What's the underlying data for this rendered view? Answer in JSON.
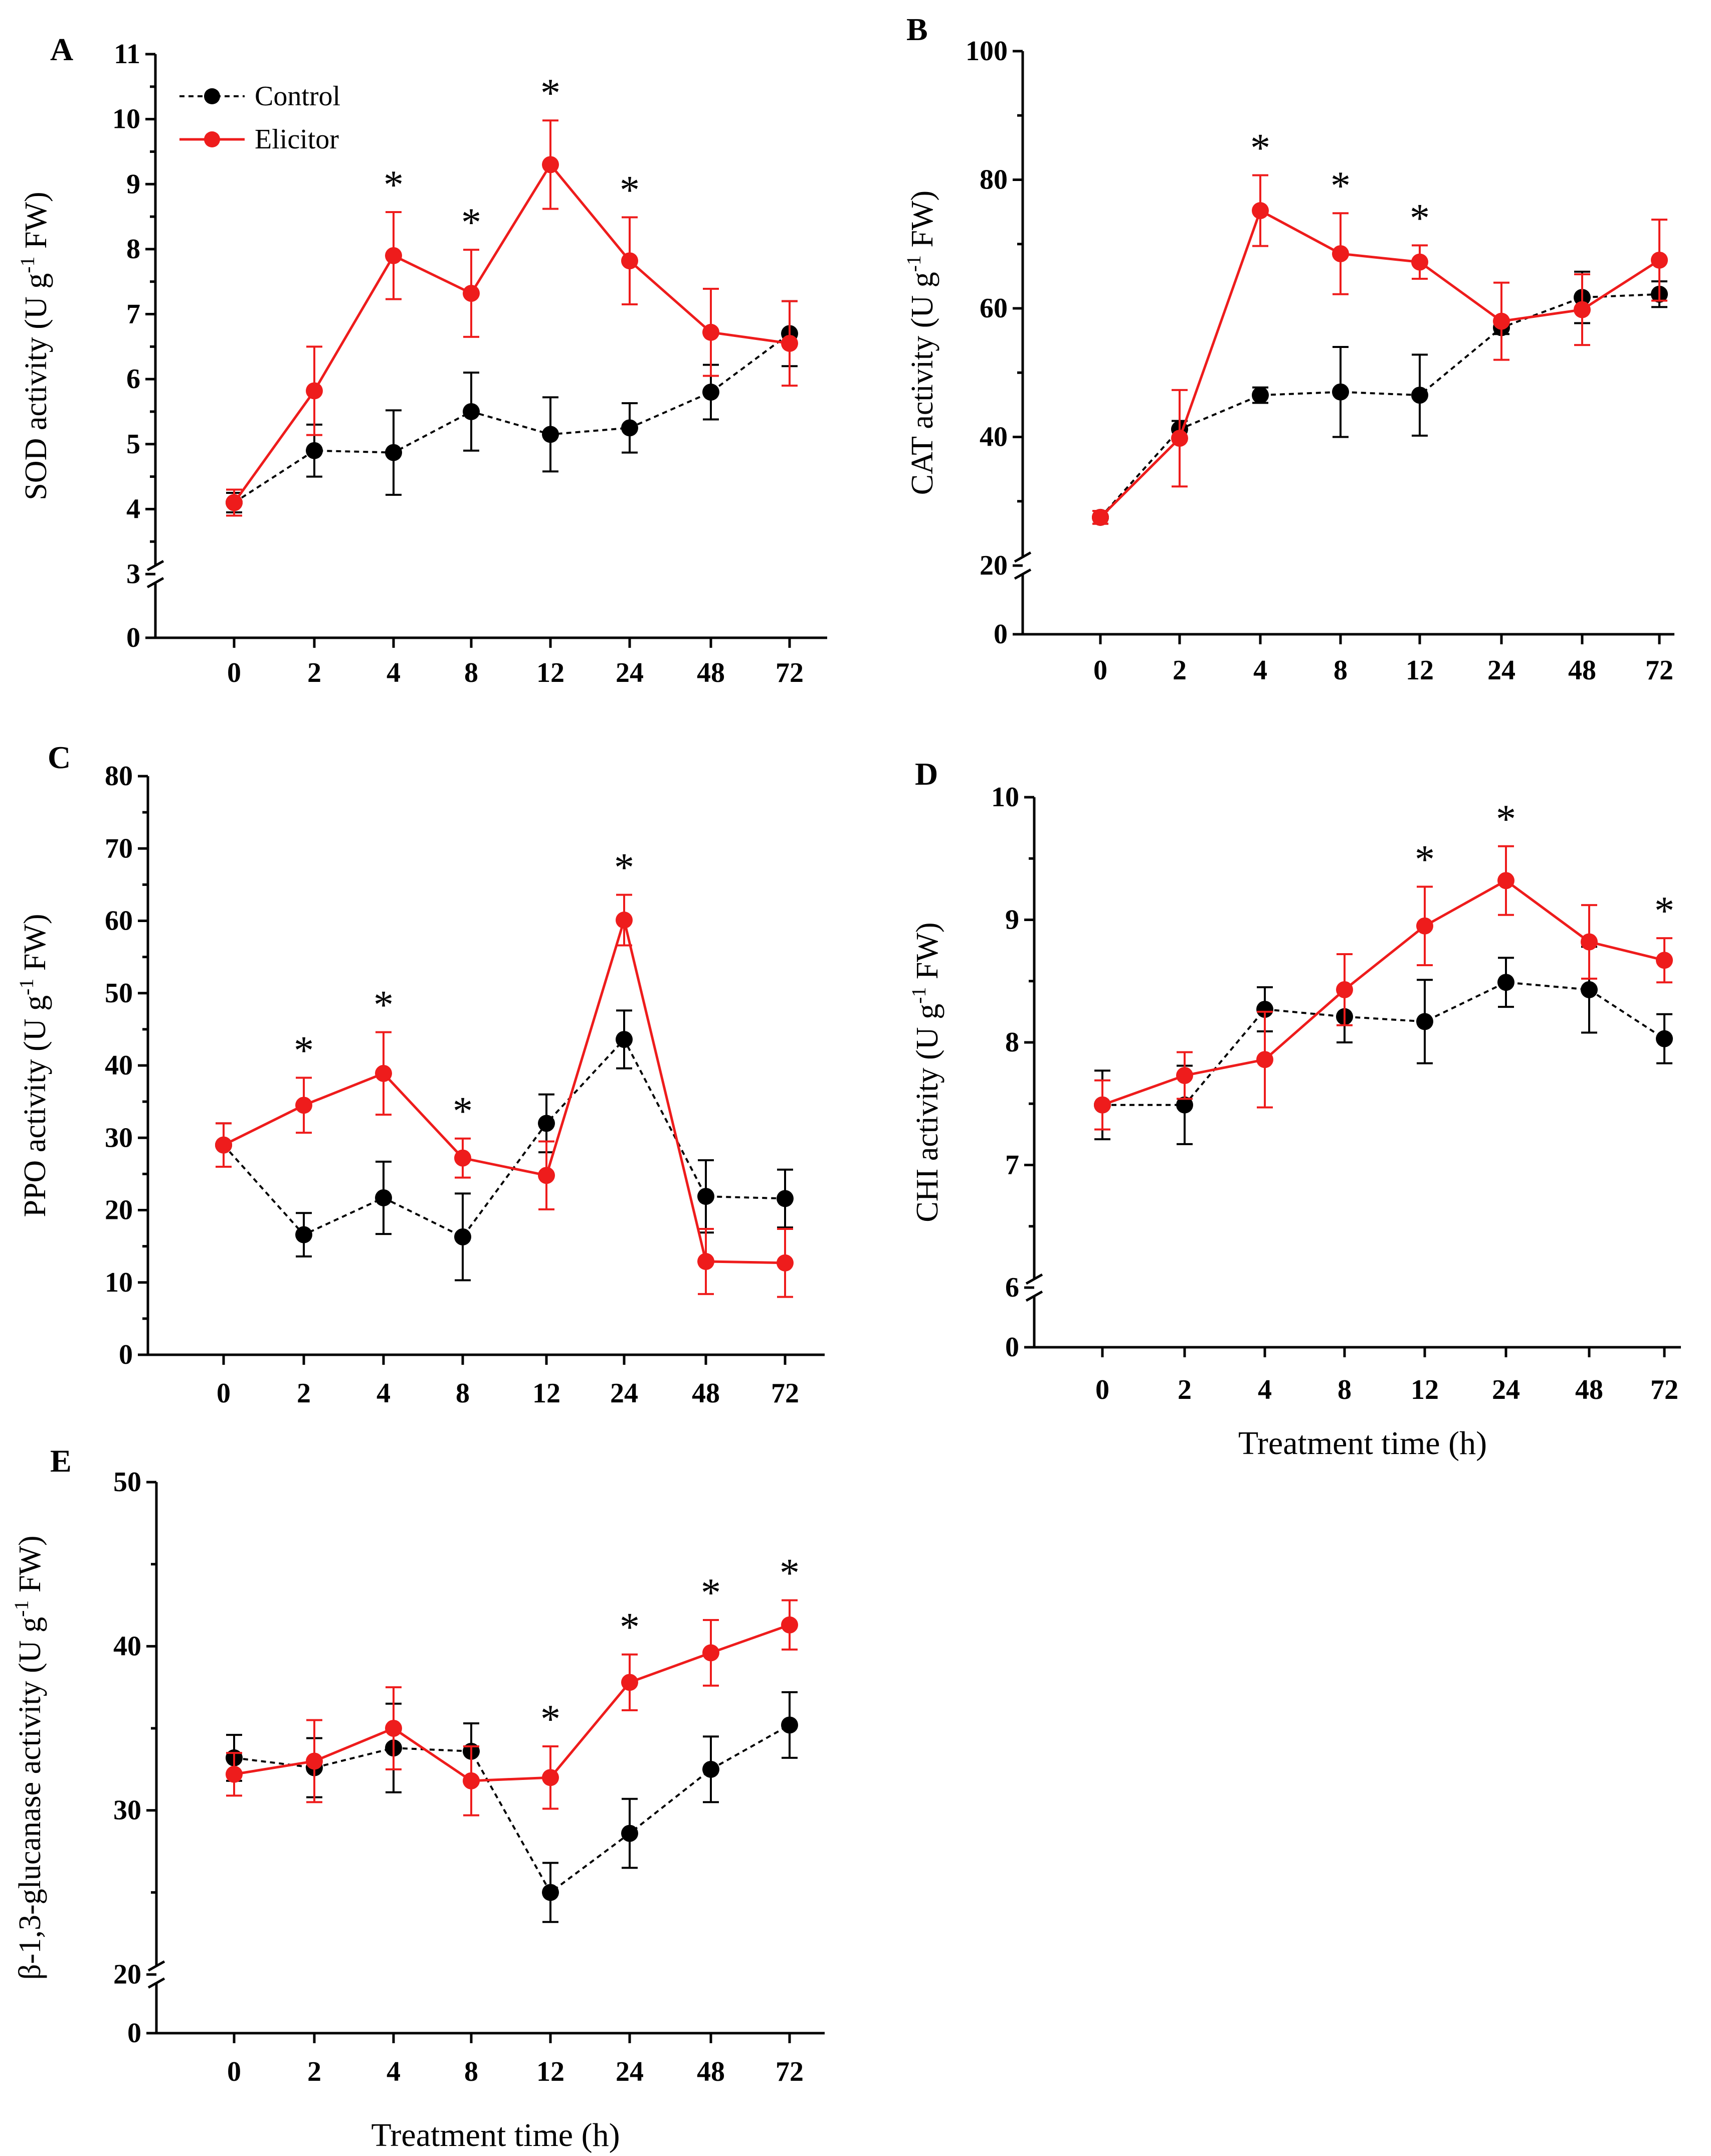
{
  "colors": {
    "control": "#000000",
    "elicitor": "#ee1c1c",
    "axis": "#000000"
  },
  "legend": {
    "control_label": "Control",
    "elicitor_label": "Elicitor"
  },
  "chart_data": [
    {
      "id": "A",
      "type": "line",
      "panel_label": "A",
      "ylabel": "SOD activity (U g-1 FW)",
      "ylabel_pre": "SOD activity (U g",
      "ylabel_sup": "-1",
      "ylabel_post": " FW)",
      "xlabel": "",
      "categories": [
        "0",
        "2",
        "4",
        "8",
        "12",
        "24",
        "48",
        "72"
      ],
      "yticks": [
        "3",
        "4",
        "5",
        "6",
        "7",
        "8",
        "9",
        "10",
        "11"
      ],
      "ytick_values": [
        3,
        4,
        5,
        6,
        7,
        8,
        9,
        10,
        11
      ],
      "ylim": [
        3,
        11
      ],
      "axis_break_zero": "0",
      "series": [
        {
          "name": "Control",
          "values": [
            4.1,
            4.9,
            4.87,
            5.5,
            5.15,
            5.25,
            5.8,
            6.7
          ],
          "errors": [
            0.15,
            0.4,
            0.65,
            0.6,
            0.57,
            0.38,
            0.42,
            0.5
          ]
        },
        {
          "name": "Elicitor",
          "values": [
            4.1,
            5.82,
            7.9,
            7.32,
            9.3,
            7.82,
            6.72,
            6.55
          ],
          "errors": [
            0.2,
            0.68,
            0.67,
            0.67,
            0.68,
            0.67,
            0.67,
            0.65
          ]
        }
      ],
      "significance": [
        "",
        "",
        "*",
        "*",
        "*",
        "*",
        "",
        ""
      ],
      "show_legend": true
    },
    {
      "id": "B",
      "type": "line",
      "panel_label": "B",
      "ylabel": "CAT activity (U g-1 FW)",
      "ylabel_pre": "CAT activity (U g",
      "ylabel_sup": "-1",
      "ylabel_post": " FW)",
      "xlabel": "",
      "categories": [
        "0",
        "2",
        "4",
        "8",
        "12",
        "24",
        "48",
        "72"
      ],
      "yticks": [
        "20",
        "40",
        "60",
        "80",
        "100"
      ],
      "ytick_values": [
        20,
        40,
        60,
        80,
        100
      ],
      "ylim": [
        20,
        100
      ],
      "axis_break_zero": "0",
      "series": [
        {
          "name": "Control",
          "values": [
            27.5,
            41.2,
            46.5,
            47,
            46.5,
            57,
            61.7,
            62.2
          ],
          "errors": [
            1,
            1.3,
            1.2,
            7,
            6.3,
            1,
            4,
            2
          ]
        },
        {
          "name": "Elicitor",
          "values": [
            27.5,
            39.8,
            75.2,
            68.5,
            67.2,
            58,
            59.8,
            67.5
          ],
          "errors": [
            1,
            7.5,
            5.5,
            6.3,
            2.6,
            6,
            5.5,
            6.3
          ]
        }
      ],
      "significance": [
        "",
        "",
        "*",
        "*",
        "*",
        "",
        "",
        ""
      ],
      "show_legend": false
    },
    {
      "id": "C",
      "type": "line",
      "panel_label": "C",
      "ylabel": "PPO activity (U g-1 FW)",
      "ylabel_pre": "PPO activity (U g",
      "ylabel_sup": "-1",
      "ylabel_post": " FW)",
      "xlabel": "",
      "categories": [
        "0",
        "2",
        "4",
        "8",
        "12",
        "24",
        "48",
        "72"
      ],
      "yticks": [
        "0",
        "10",
        "20",
        "30",
        "40",
        "50",
        "60",
        "70",
        "80"
      ],
      "ytick_values": [
        0,
        10,
        20,
        30,
        40,
        50,
        60,
        70,
        80
      ],
      "ylim": [
        0,
        80
      ],
      "axis_break_zero": "",
      "series": [
        {
          "name": "Control",
          "values": [
            29,
            16.6,
            21.7,
            16.3,
            32,
            43.6,
            21.9,
            21.6
          ],
          "errors": [
            3,
            3,
            5,
            6,
            4,
            4,
            5,
            4
          ]
        },
        {
          "name": "Elicitor",
          "values": [
            29,
            34.5,
            38.9,
            27.2,
            24.8,
            60.1,
            12.9,
            12.7
          ],
          "errors": [
            3,
            3.8,
            5.7,
            2.7,
            4.7,
            3.5,
            4.5,
            4.7
          ]
        }
      ],
      "significance": [
        "",
        "*",
        "*",
        "*",
        "",
        "*",
        "",
        ""
      ],
      "show_legend": false
    },
    {
      "id": "D",
      "type": "line",
      "panel_label": "D",
      "ylabel": "CHI activity (U g-1 FW)",
      "ylabel_pre": "CHI activity (U g",
      "ylabel_sup": "-1",
      "ylabel_post": " FW)",
      "xlabel": "Treatment time (h)",
      "categories": [
        "0",
        "2",
        "4",
        "8",
        "12",
        "24",
        "48",
        "72"
      ],
      "yticks": [
        "6",
        "7",
        "8",
        "9",
        "10"
      ],
      "ytick_values": [
        6,
        7,
        8,
        9,
        10
      ],
      "ylim": [
        6,
        10
      ],
      "axis_break_zero": "0",
      "series": [
        {
          "name": "Control",
          "values": [
            7.49,
            7.49,
            8.27,
            8.21,
            8.17,
            8.49,
            8.43,
            8.03
          ],
          "errors": [
            0.28,
            0.32,
            0.18,
            0.21,
            0.34,
            0.2,
            0.35,
            0.2
          ]
        },
        {
          "name": "Elicitor",
          "values": [
            7.49,
            7.73,
            7.86,
            8.43,
            8.95,
            9.32,
            8.82,
            8.67
          ],
          "errors": [
            0.2,
            0.19,
            0.39,
            0.29,
            0.32,
            0.28,
            0.3,
            0.18
          ]
        }
      ],
      "significance": [
        "",
        "",
        "",
        "",
        "*",
        "*",
        "",
        "*"
      ],
      "show_legend": false
    },
    {
      "id": "E",
      "type": "line",
      "panel_label": "E",
      "ylabel": "β-1,3-glucanase activity (U g-1 FW)",
      "ylabel_pre": "β-1,3-glucanase activity (U g",
      "ylabel_sup": "-1",
      "ylabel_post": " FW)",
      "xlabel": "Treatment time (h)",
      "categories": [
        "0",
        "2",
        "4",
        "8",
        "12",
        "24",
        "48",
        "72"
      ],
      "yticks": [
        "20",
        "30",
        "40",
        "50"
      ],
      "ytick_values": [
        20,
        30,
        40,
        50
      ],
      "ylim": [
        20,
        50
      ],
      "axis_break_zero": "0",
      "series": [
        {
          "name": "Control",
          "values": [
            33.2,
            32.6,
            33.8,
            33.6,
            25,
            28.6,
            32.5,
            35.2
          ],
          "errors": [
            1.4,
            1.8,
            2.7,
            1.7,
            1.8,
            2.1,
            2,
            2
          ]
        },
        {
          "name": "Elicitor",
          "values": [
            32.2,
            33,
            35,
            31.8,
            32,
            37.8,
            39.6,
            41.3
          ],
          "errors": [
            1.3,
            2.5,
            2.5,
            2.1,
            1.9,
            1.7,
            2,
            1.5
          ]
        }
      ],
      "significance": [
        "",
        "",
        "",
        "",
        "*",
        "*",
        "*",
        "*"
      ],
      "show_legend": false
    }
  ]
}
